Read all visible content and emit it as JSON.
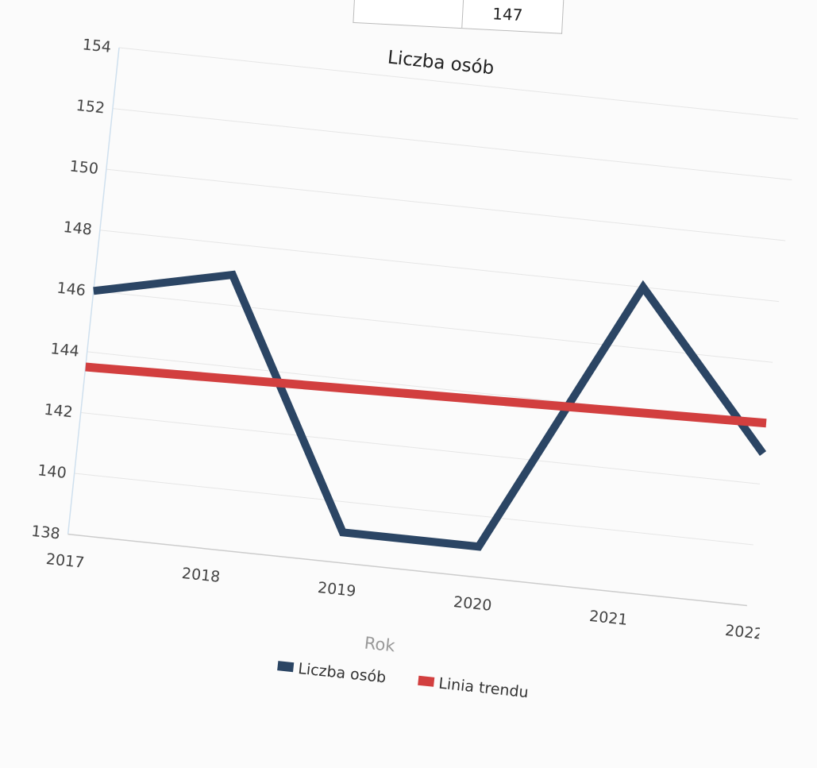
{
  "table_fragment": {
    "cell_value": "147"
  },
  "chart_data": {
    "type": "line",
    "title": "Liczba osób",
    "xlabel": "Rok",
    "ylabel": "",
    "categories": [
      "2017",
      "2018",
      "2019",
      "2020",
      "2021",
      "2022"
    ],
    "y_ticks": [
      "138",
      "140",
      "142",
      "144",
      "146",
      "148",
      "150",
      "152",
      "154"
    ],
    "ylim": [
      138,
      154
    ],
    "grid": true,
    "legend_position": "bottom",
    "series": [
      {
        "name": "Liczba osób",
        "values": [
          146,
          147,
          139,
          139,
          148,
          143
        ],
        "color": "#2b4564"
      },
      {
        "name": "Linia trendu",
        "values": [
          143.5,
          143.6,
          143.7,
          143.8,
          143.9,
          144.0
        ],
        "color": "#d23f3f"
      }
    ]
  }
}
